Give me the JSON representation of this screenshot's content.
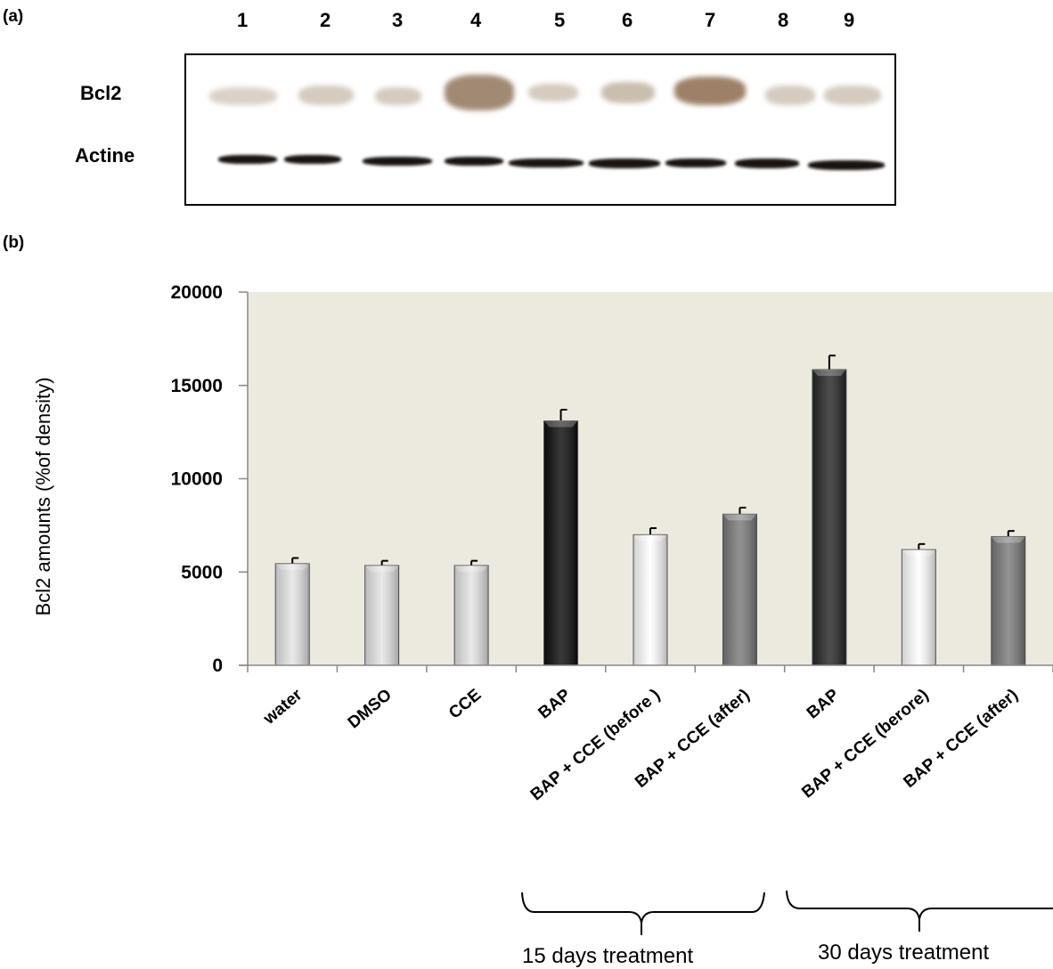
{
  "panel_a": {
    "label": "(a)",
    "lanes": [
      "1",
      "2",
      "3",
      "4",
      "5",
      "6",
      "7",
      "8",
      "9"
    ],
    "rows": [
      "Bcl2",
      "Actine"
    ]
  },
  "panel_b": {
    "label": "(b)",
    "groups": [
      {
        "label": "15 days treatment"
      },
      {
        "label": "30 days treatment"
      }
    ]
  },
  "colors": {
    "plot_background": "#ece9df",
    "control_bar": "#e4e4e4",
    "bap_15_bar": "#0d0d0d",
    "bap_30_bar": "#272727",
    "before_bar": "#ffffff",
    "after_bar": "#7a7a7a"
  },
  "chart_data": {
    "type": "bar",
    "title": "",
    "xlabel": "",
    "ylabel": "Bcl2  amounts (%of density)",
    "ylim": [
      0,
      20000
    ],
    "yticks": [
      "0",
      "5000",
      "10000",
      "15000",
      "20000"
    ],
    "categories": [
      "water",
      "DMSO",
      "CCE",
      "BAP",
      "BAP + CCE (before )",
      "BAP + CCE (after)",
      "BAP",
      "BAP + CCE (berore)",
      "BAP + CCE (after)"
    ],
    "values": [
      5450,
      5350,
      5350,
      13100,
      7000,
      8100,
      15850,
      6200,
      6900
    ],
    "errors": [
      300,
      250,
      250,
      600,
      350,
      350,
      750,
      300,
      300
    ],
    "bar_colors": [
      "#e4e4e4",
      "#e4e4e4",
      "#e4e4e4",
      "#0d0d0d",
      "#ffffff",
      "#7a7a7a",
      "#272727",
      "#ffffff",
      "#7a7a7a"
    ],
    "grid": false,
    "legend": "none"
  }
}
